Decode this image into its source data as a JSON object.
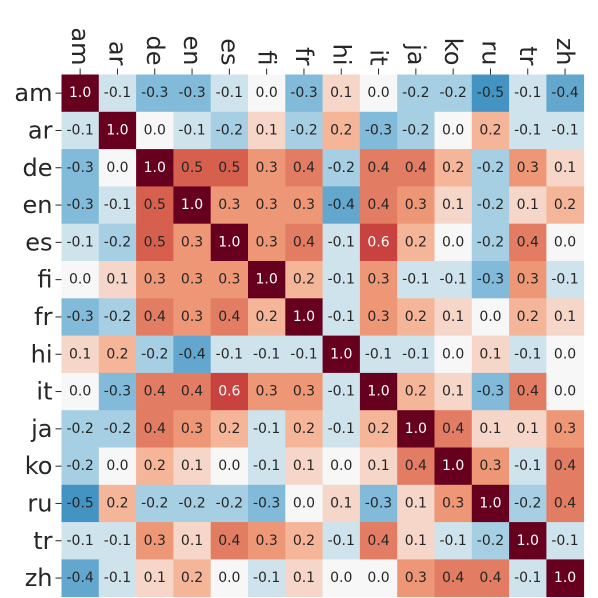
{
  "chart_data": {
    "type": "heatmap",
    "title": "",
    "xlabel": "",
    "ylabel": "",
    "labels": [
      "am",
      "ar",
      "de",
      "en",
      "es",
      "fi",
      "fr",
      "hi",
      "it",
      "ja",
      "ko",
      "ru",
      "tr",
      "zh"
    ],
    "value_range": [
      -1.0,
      1.0
    ],
    "colormap": "RdBu_r",
    "grid": false,
    "legend": "none",
    "values": [
      [
        1.0,
        -0.1,
        -0.3,
        -0.3,
        -0.1,
        0.0,
        -0.3,
        0.1,
        0.0,
        -0.2,
        -0.2,
        -0.5,
        -0.1,
        -0.4
      ],
      [
        -0.1,
        1.0,
        0.0,
        -0.1,
        -0.2,
        0.1,
        -0.2,
        0.2,
        -0.3,
        -0.2,
        0.0,
        0.2,
        -0.1,
        -0.1
      ],
      [
        -0.3,
        0.0,
        1.0,
        0.5,
        0.5,
        0.3,
        0.4,
        -0.2,
        0.4,
        0.4,
        0.2,
        -0.2,
        0.3,
        0.1
      ],
      [
        -0.3,
        -0.1,
        0.5,
        1.0,
        0.3,
        0.3,
        0.3,
        -0.4,
        0.4,
        0.3,
        0.1,
        -0.2,
        0.1,
        0.2
      ],
      [
        -0.1,
        -0.2,
        0.5,
        0.3,
        1.0,
        0.3,
        0.4,
        -0.1,
        0.6,
        0.2,
        0.0,
        -0.2,
        0.4,
        0.0
      ],
      [
        0.0,
        0.1,
        0.3,
        0.3,
        0.3,
        1.0,
        0.2,
        -0.1,
        0.3,
        -0.1,
        -0.1,
        -0.3,
        0.3,
        -0.1
      ],
      [
        -0.3,
        -0.2,
        0.4,
        0.3,
        0.4,
        0.2,
        1.0,
        -0.1,
        0.3,
        0.2,
        0.1,
        0.0,
        0.2,
        0.1
      ],
      [
        0.1,
        0.2,
        -0.2,
        -0.4,
        -0.1,
        -0.1,
        -0.1,
        1.0,
        -0.1,
        -0.1,
        0.0,
        0.1,
        -0.1,
        0.0
      ],
      [
        0.0,
        -0.3,
        0.4,
        0.4,
        0.6,
        0.3,
        0.3,
        -0.1,
        1.0,
        0.2,
        0.1,
        -0.3,
        0.4,
        0.0
      ],
      [
        -0.2,
        -0.2,
        0.4,
        0.3,
        0.2,
        -0.1,
        0.2,
        -0.1,
        0.2,
        1.0,
        0.4,
        0.1,
        0.1,
        0.3
      ],
      [
        -0.2,
        0.0,
        0.2,
        0.1,
        0.0,
        -0.1,
        0.1,
        0.0,
        0.1,
        0.4,
        1.0,
        0.3,
        -0.1,
        0.4
      ],
      [
        -0.5,
        0.2,
        -0.2,
        -0.2,
        -0.2,
        -0.3,
        0.0,
        0.1,
        -0.3,
        0.1,
        0.3,
        1.0,
        -0.2,
        0.4
      ],
      [
        -0.1,
        -0.1,
        0.3,
        0.1,
        0.4,
        0.3,
        0.2,
        -0.1,
        0.4,
        0.1,
        -0.1,
        -0.2,
        1.0,
        -0.1
      ],
      [
        -0.4,
        -0.1,
        0.1,
        0.2,
        0.0,
        -0.1,
        0.1,
        0.0,
        0.0,
        0.3,
        0.4,
        0.4,
        -0.1,
        1.0
      ]
    ]
  }
}
